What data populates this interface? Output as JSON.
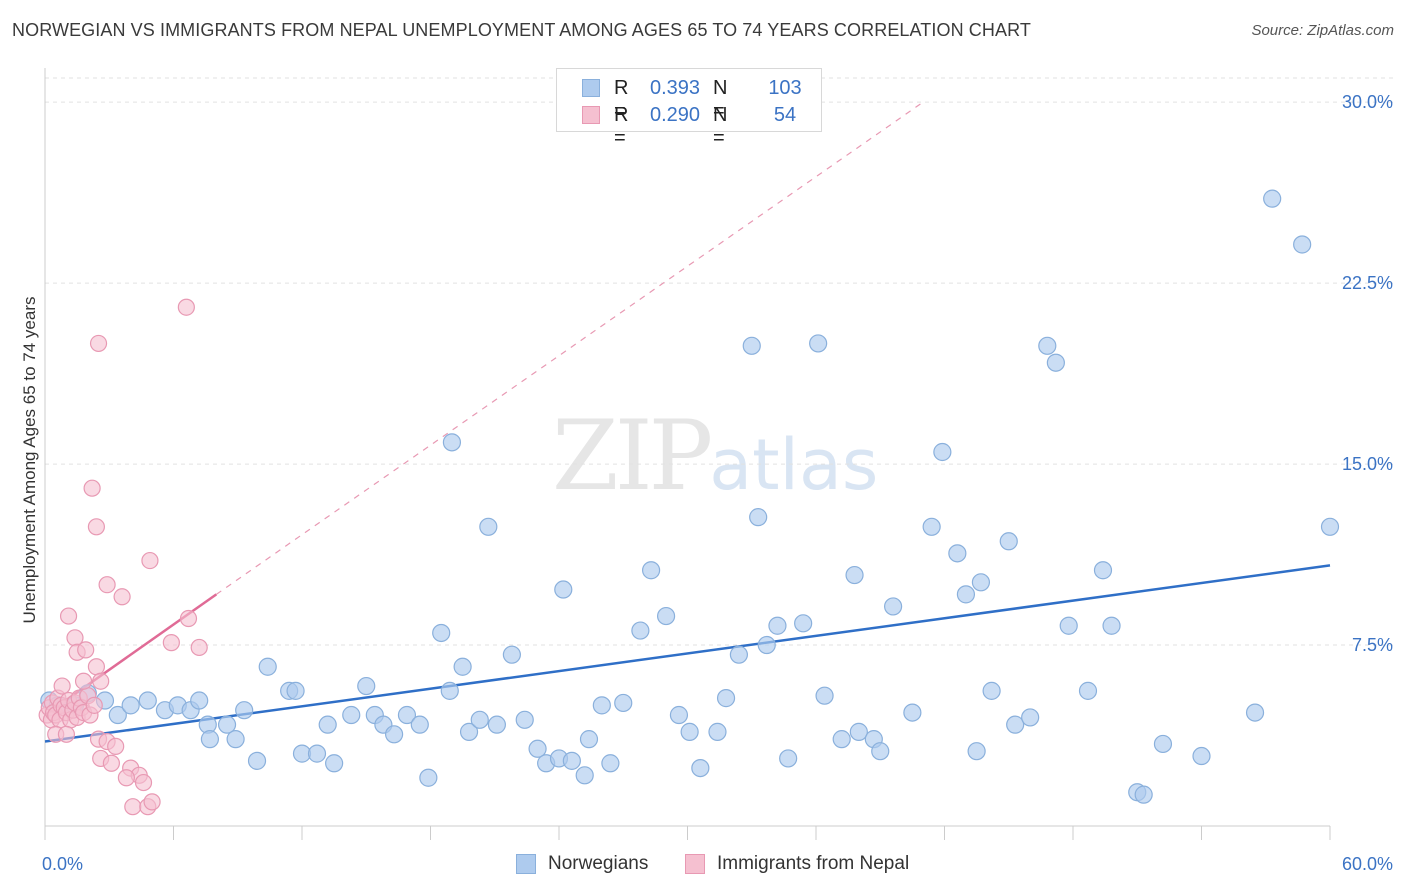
{
  "title": "NORWEGIAN VS IMMIGRANTS FROM NEPAL UNEMPLOYMENT AMONG AGES 65 TO 74 YEARS CORRELATION CHART",
  "source": "Source: ZipAtlas.com",
  "watermark": {
    "zip": "ZIP",
    "atlas": "atlas"
  },
  "stats": {
    "rows": [
      {
        "r_label": "R =",
        "r_value": "0.393",
        "n_label": "N =",
        "n_value": "103"
      },
      {
        "r_label": "R =",
        "r_value": "0.290",
        "n_label": "N =",
        "n_value": "54"
      }
    ]
  },
  "colors": {
    "blue_fill": "#aecbee",
    "blue_stroke": "#8ab0dc",
    "blue_line": "#2f6fc7",
    "pink_fill": "#f5c0d0",
    "pink_stroke": "#e899b3",
    "pink_line": "#e06b96",
    "grid": "#e2e2e2",
    "tick_text": "#3b73c4"
  },
  "chart_data": {
    "type": "scatter",
    "title": "NORWEGIAN VS IMMIGRANTS FROM NEPAL UNEMPLOYMENT AMONG AGES 65 TO 74 YEARS CORRELATION CHART",
    "xlabel": "",
    "ylabel": "Unemployment Among Ages 65 to 74 years",
    "xlim": [
      0,
      60
    ],
    "ylim": [
      0,
      31
    ],
    "x_tick_labels": [
      "0.0%",
      "60.0%"
    ],
    "y_ticks": [
      7.5,
      15.0,
      22.5,
      30.0
    ],
    "y_tick_labels": [
      "7.5%",
      "15.0%",
      "22.5%",
      "30.0%"
    ],
    "grid": true,
    "legend_position": "bottom-center",
    "series": [
      {
        "name": "Norwegians",
        "color": "#aecbee",
        "trend": {
          "x": [
            0,
            60
          ],
          "y": [
            3.5,
            10.8
          ]
        },
        "points": [
          [
            0.2,
            5.2
          ],
          [
            0.6,
            5.0
          ],
          [
            1.4,
            5.0
          ],
          [
            2.0,
            5.5
          ],
          [
            2.8,
            5.2
          ],
          [
            3.4,
            4.6
          ],
          [
            4.0,
            5.0
          ],
          [
            4.8,
            5.2
          ],
          [
            5.6,
            4.8
          ],
          [
            6.2,
            5.0
          ],
          [
            6.8,
            4.8
          ],
          [
            7.2,
            5.2
          ],
          [
            7.6,
            4.2
          ],
          [
            7.7,
            3.6
          ],
          [
            8.5,
            4.2
          ],
          [
            8.9,
            3.6
          ],
          [
            9.3,
            4.8
          ],
          [
            9.9,
            2.7
          ],
          [
            10.4,
            6.6
          ],
          [
            11.4,
            5.6
          ],
          [
            11.7,
            5.6
          ],
          [
            12.0,
            3.0
          ],
          [
            12.7,
            3.0
          ],
          [
            13.2,
            4.2
          ],
          [
            13.5,
            2.6
          ],
          [
            14.3,
            4.6
          ],
          [
            15.0,
            5.8
          ],
          [
            15.4,
            4.6
          ],
          [
            15.8,
            4.2
          ],
          [
            16.3,
            3.8
          ],
          [
            16.9,
            4.6
          ],
          [
            17.5,
            4.2
          ],
          [
            17.9,
            2.0
          ],
          [
            18.5,
            8.0
          ],
          [
            18.9,
            5.6
          ],
          [
            19.0,
            15.9
          ],
          [
            19.5,
            6.6
          ],
          [
            19.8,
            3.9
          ],
          [
            20.3,
            4.4
          ],
          [
            20.7,
            12.4
          ],
          [
            21.1,
            4.2
          ],
          [
            21.8,
            7.1
          ],
          [
            22.4,
            4.4
          ],
          [
            23.0,
            3.2
          ],
          [
            23.4,
            2.6
          ],
          [
            24.0,
            2.8
          ],
          [
            24.2,
            9.8
          ],
          [
            24.6,
            2.7
          ],
          [
            25.2,
            2.1
          ],
          [
            25.4,
            3.6
          ],
          [
            26.0,
            5.0
          ],
          [
            26.4,
            2.6
          ],
          [
            27.0,
            5.1
          ],
          [
            27.8,
            8.1
          ],
          [
            28.3,
            10.6
          ],
          [
            29.0,
            8.7
          ],
          [
            29.6,
            4.6
          ],
          [
            30.1,
            3.9
          ],
          [
            30.6,
            2.4
          ],
          [
            31.4,
            3.9
          ],
          [
            31.8,
            5.3
          ],
          [
            32.4,
            7.1
          ],
          [
            33.0,
            19.9
          ],
          [
            33.3,
            12.8
          ],
          [
            33.7,
            7.5
          ],
          [
            34.2,
            8.3
          ],
          [
            34.7,
            2.8
          ],
          [
            35.4,
            8.4
          ],
          [
            36.1,
            20.0
          ],
          [
            36.4,
            5.4
          ],
          [
            37.2,
            3.6
          ],
          [
            37.8,
            10.4
          ],
          [
            38.0,
            3.9
          ],
          [
            38.7,
            3.6
          ],
          [
            39.0,
            3.1
          ],
          [
            39.6,
            9.1
          ],
          [
            40.5,
            4.7
          ],
          [
            41.4,
            12.4
          ],
          [
            41.9,
            15.5
          ],
          [
            42.6,
            11.3
          ],
          [
            43.0,
            9.6
          ],
          [
            43.5,
            3.1
          ],
          [
            43.7,
            10.1
          ],
          [
            44.2,
            5.6
          ],
          [
            45.0,
            11.8
          ],
          [
            45.3,
            4.2
          ],
          [
            46.0,
            4.5
          ],
          [
            46.8,
            19.9
          ],
          [
            47.2,
            19.2
          ],
          [
            47.8,
            8.3
          ],
          [
            48.7,
            5.6
          ],
          [
            49.4,
            10.6
          ],
          [
            49.8,
            8.3
          ],
          [
            51.0,
            1.4
          ],
          [
            51.3,
            1.3
          ],
          [
            52.2,
            3.4
          ],
          [
            54.0,
            2.9
          ],
          [
            56.5,
            4.7
          ],
          [
            57.3,
            26.0
          ],
          [
            58.7,
            24.1
          ],
          [
            60.0,
            12.4
          ]
        ]
      },
      {
        "name": "Immigrants from Nepal",
        "color": "#f5c0d0",
        "trend": {
          "x": [
            0,
            8.0
          ],
          "y": [
            4.6,
            9.6
          ],
          "extended_to": [
            41.0,
            30.0
          ]
        },
        "points": [
          [
            0.1,
            4.6
          ],
          [
            0.2,
            4.9
          ],
          [
            0.3,
            4.4
          ],
          [
            0.35,
            5.1
          ],
          [
            0.4,
            4.7
          ],
          [
            0.5,
            4.6
          ],
          [
            0.6,
            5.3
          ],
          [
            0.7,
            4.4
          ],
          [
            0.75,
            5.0
          ],
          [
            0.8,
            5.8
          ],
          [
            0.9,
            4.9
          ],
          [
            1.0,
            4.7
          ],
          [
            1.1,
            5.2
          ],
          [
            1.2,
            4.4
          ],
          [
            1.3,
            4.8
          ],
          [
            1.4,
            5.1
          ],
          [
            1.5,
            4.5
          ],
          [
            1.6,
            5.3
          ],
          [
            1.7,
            4.9
          ],
          [
            1.8,
            4.7
          ],
          [
            2.0,
            5.4
          ],
          [
            2.1,
            4.6
          ],
          [
            2.3,
            5.0
          ],
          [
            0.5,
            3.8
          ],
          [
            1.0,
            3.8
          ],
          [
            2.5,
            3.6
          ],
          [
            2.9,
            3.5
          ],
          [
            3.3,
            3.3
          ],
          [
            2.6,
            2.8
          ],
          [
            3.1,
            2.6
          ],
          [
            4.0,
            2.4
          ],
          [
            4.4,
            2.1
          ],
          [
            3.8,
            2.0
          ],
          [
            4.6,
            1.8
          ],
          [
            4.1,
            0.8
          ],
          [
            4.8,
            0.8
          ],
          [
            5.0,
            1.0
          ],
          [
            1.1,
            8.7
          ],
          [
            1.4,
            7.8
          ],
          [
            1.5,
            7.2
          ],
          [
            1.9,
            7.3
          ],
          [
            2.4,
            6.6
          ],
          [
            1.8,
            6.0
          ],
          [
            2.6,
            6.0
          ],
          [
            2.2,
            14.0
          ],
          [
            2.4,
            12.4
          ],
          [
            2.9,
            10.0
          ],
          [
            3.6,
            9.5
          ],
          [
            4.9,
            11.0
          ],
          [
            5.9,
            7.6
          ],
          [
            6.7,
            8.6
          ],
          [
            7.2,
            7.4
          ],
          [
            2.5,
            20.0
          ],
          [
            6.6,
            21.5
          ]
        ]
      }
    ]
  },
  "legend": {
    "items": [
      "Norwegians",
      "Immigrants from Nepal"
    ]
  }
}
